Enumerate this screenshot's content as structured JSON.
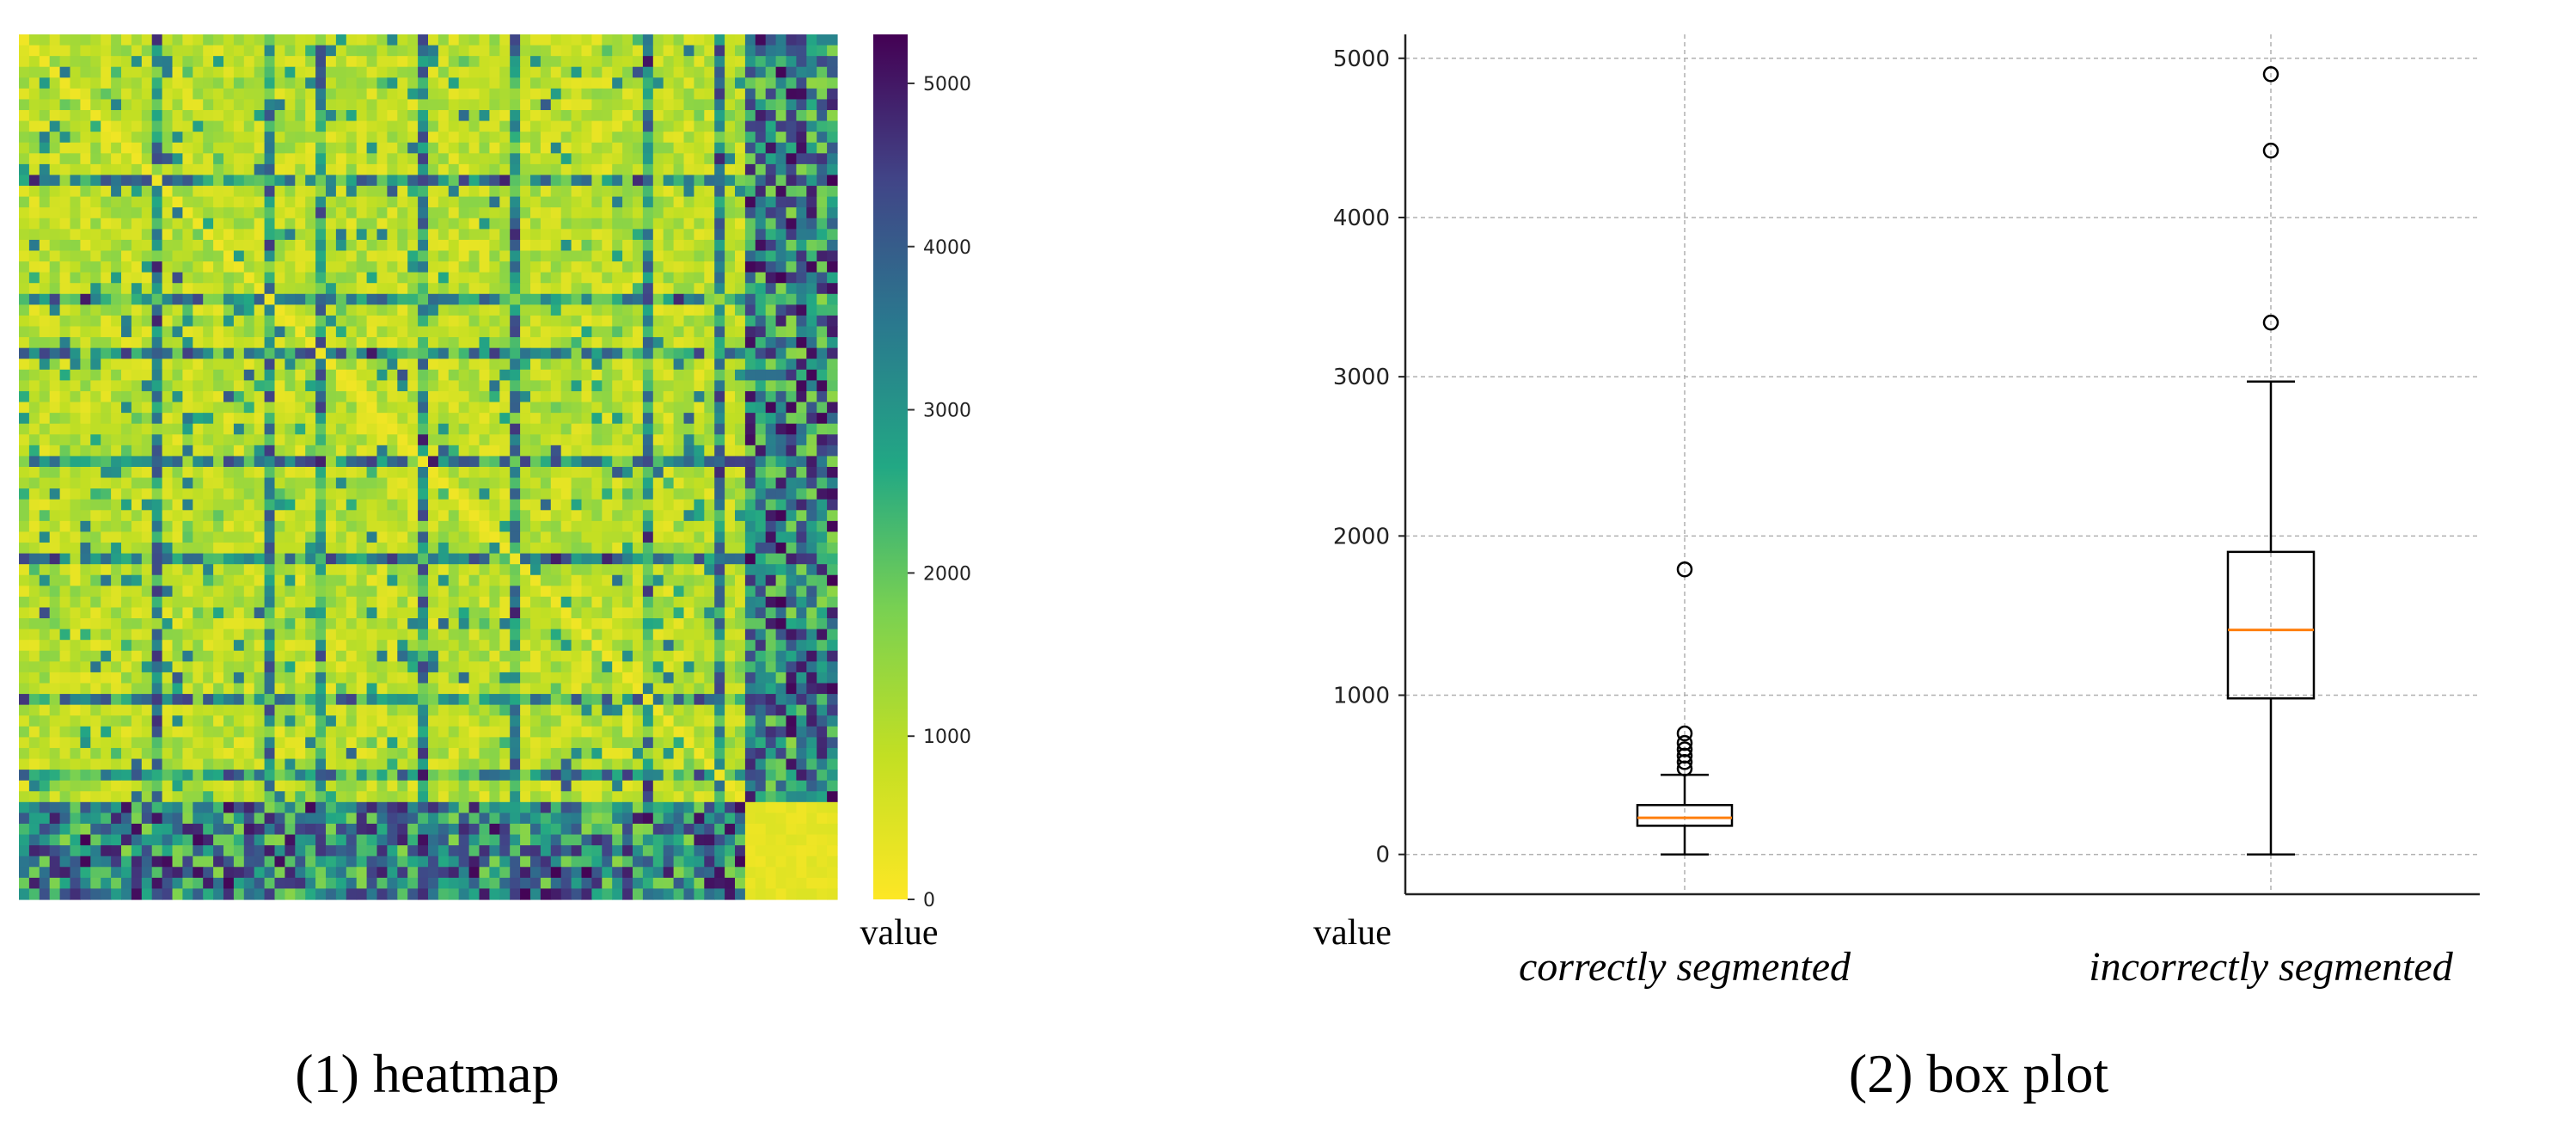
{
  "chart_data": [
    {
      "type": "heatmap",
      "caption": "(1) heatmap",
      "colorbar_label": "value",
      "colorbar_ticks": [
        "0",
        "1000",
        "2000",
        "3000",
        "4000",
        "5000"
      ],
      "colorbar_tick_values": [
        0,
        1000,
        2000,
        3000,
        4000,
        5000
      ],
      "colorbar_range": [
        0,
        5300
      ],
      "colormap_stops": [
        "#fde725",
        "#c2df23",
        "#7ad151",
        "#22a884",
        "#2a788e",
        "#414487",
        "#440154"
      ],
      "grid_size": 80,
      "segmented_block_size": 71,
      "value_description": "pairwise values; correctly segmented block mostly 300-1500 with darker rows; incorrectly segmented rows/columns 1500-5300; bottom-right corner low"
    },
    {
      "type": "box",
      "caption": "(2) box plot",
      "xlabel": "value",
      "categories": [
        "correctly segmented",
        "incorrectly segmented"
      ],
      "ylim": [
        -250,
        5150
      ],
      "yticks": [
        "0",
        "1000",
        "2000",
        "3000",
        "4000",
        "5000"
      ],
      "ytick_values": [
        0,
        1000,
        2000,
        3000,
        4000,
        5000
      ],
      "grid": true,
      "boxes": [
        {
          "name": "correctly segmented",
          "whisker_low": 0,
          "q1": 180,
          "median": 230,
          "q3": 310,
          "whisker_high": 500,
          "outliers": [
            540,
            580,
            620,
            660,
            700,
            760,
            1790
          ]
        },
        {
          "name": "incorrectly segmented",
          "whisker_low": 0,
          "q1": 980,
          "median": 1410,
          "q3": 1900,
          "whisker_high": 2970,
          "outliers": [
            3340,
            4420,
            4900
          ]
        }
      ],
      "colors": {
        "box": "#000000",
        "median": "#ff7f0e",
        "grid": "#b0b0b0"
      }
    }
  ]
}
